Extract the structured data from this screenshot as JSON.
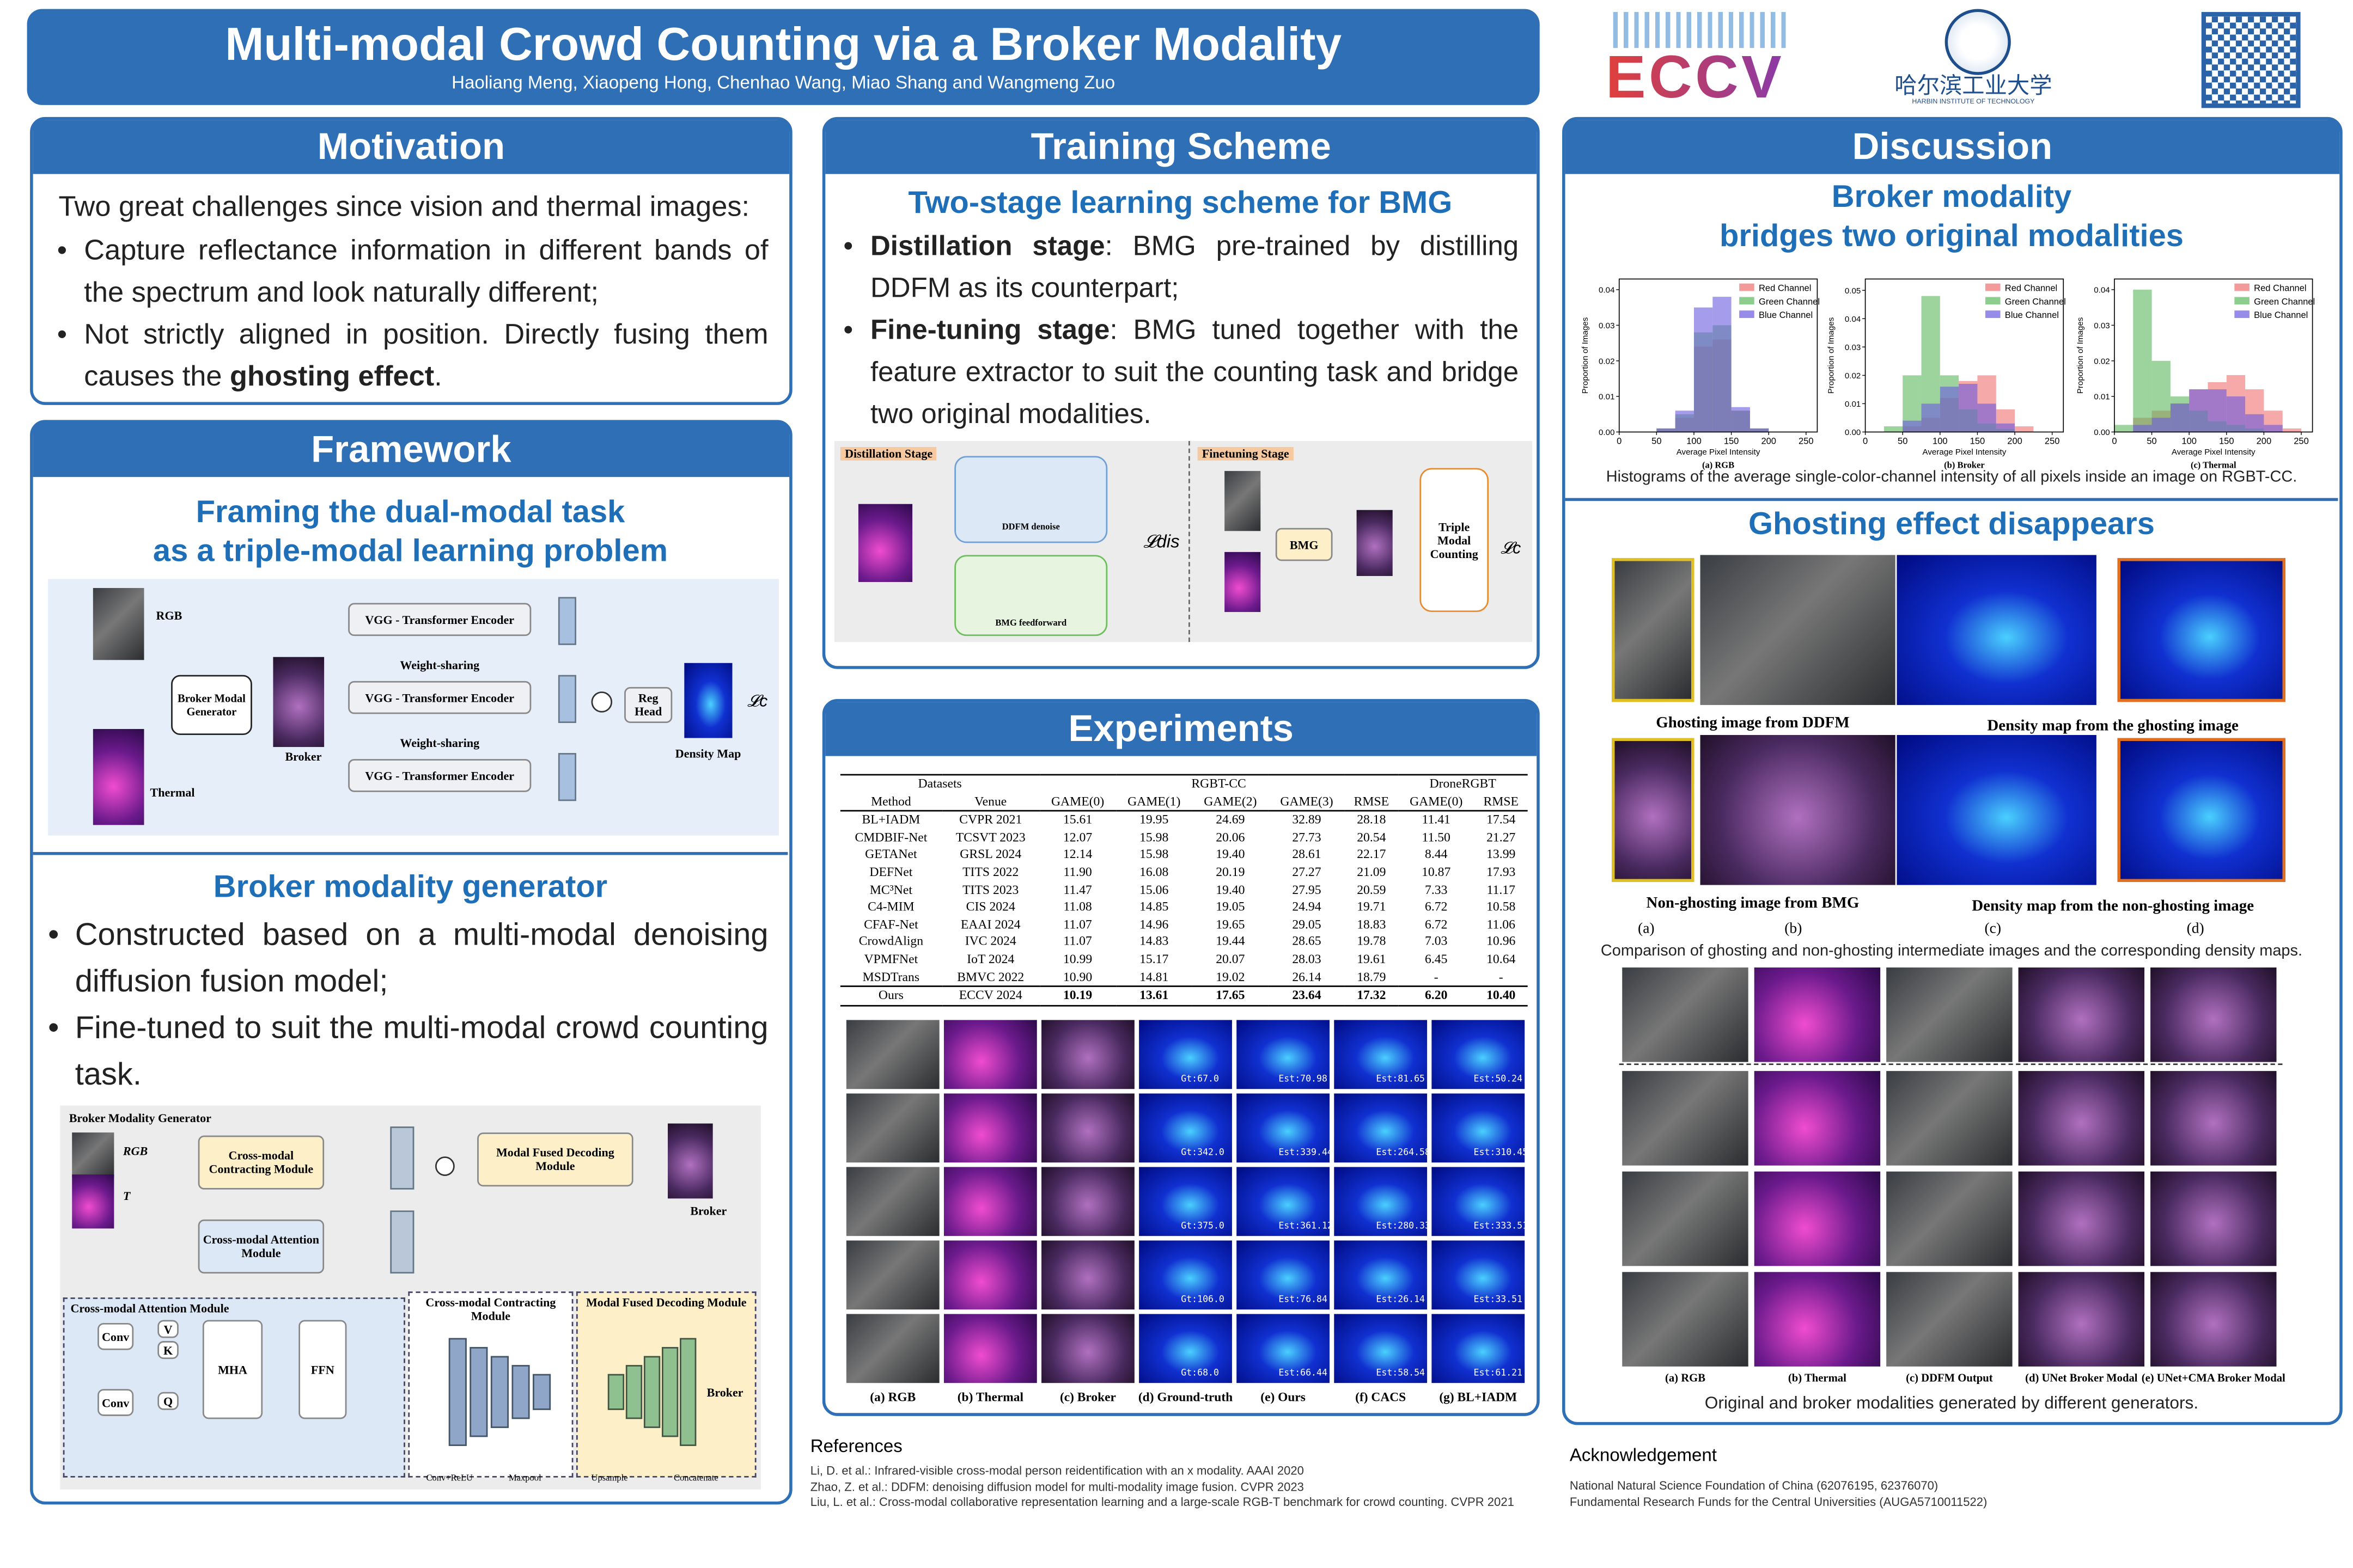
{
  "header": {
    "title": "Multi-modal Crowd Counting via a Broker Modality",
    "authors": "Haoliang Meng, Xiaopeng Hong, Chenhao Wang, Miao Shang and Wangmeng Zuo",
    "eccv": "ECCV",
    "hit_cn": "哈尔滨工业大学",
    "hit_en": "HARBIN INSTITUTE OF TECHNOLOGY"
  },
  "motivation": {
    "heading": "Motivation",
    "intro": "Two great challenges since vision and thermal images:",
    "bullets": [
      [
        "Capture reflectance information in different bands of the spectrum and look naturally different;"
      ],
      [
        "Not strictly aligned in position. Directly fusing them causes the ",
        {
          "bold": "ghosting effect"
        },
        "."
      ]
    ]
  },
  "framework": {
    "heading": "Framework",
    "subtitle": [
      "Framing the dual-modal task",
      "as a triple-modal learning problem"
    ],
    "diagram": {
      "rgb": "RGB",
      "thermal": "Thermal",
      "generator": "Broker Modal Generator",
      "broker": "Broker",
      "encoders": [
        "VGG - Transformer Encoder",
        "VGG - Transformer Encoder",
        "VGG - Transformer Encoder"
      ],
      "sharing": [
        "Weight-sharing",
        "Weight-sharing"
      ],
      "head": "Reg Head",
      "density": "Density Map",
      "loss": "𝓛c"
    },
    "bmg_heading": "Broker modality generator",
    "bullets": [
      [
        "Constructed based on a multi-modal denoising diffusion fusion model;"
      ],
      [
        "Fine-tuned to suit the multi-modal crowd counting task."
      ]
    ],
    "bmg_diagram": {
      "title": "Broker Modality Generator",
      "rgb": "RGB",
      "t": "T",
      "contract": "Cross-modal Contracting Module",
      "attention": "Cross-modal Attention Module",
      "decode": "Modal Fused Decoding Module",
      "broker": "Broker",
      "att_title": "Cross-modal Attention Module",
      "conv": [
        "Conv",
        "Conv"
      ],
      "v": "V",
      "k": "K",
      "q": "Q",
      "mha": "MHA",
      "ffn": "FFN",
      "contract_title": "Cross-modal Contracting Module",
      "decode_title": "Modal Fused Decoding Module",
      "broker2": "Broker",
      "legend": [
        "Conv+ReLU",
        "Maxpool",
        "Upsample",
        "Concatenate"
      ]
    }
  },
  "training": {
    "heading": "Training Scheme",
    "subtitle": "Two-stage learning scheme for BMG",
    "bullets": [
      [
        {
          "bold": "Distillation stage"
        },
        ": BMG pre-trained by distilling DDFM as its counterpart;"
      ],
      [
        {
          "bold": "Fine-tuning stage"
        },
        ": BMG tuned together with the feature extractor to suit the counting task and bridge two original modalities."
      ]
    ],
    "diagram": {
      "stage1": "Distillation Stage",
      "denoise": "DDFM denoise",
      "feed": "BMG feedforward",
      "loss1": "𝓛dis",
      "stage2": "Finetuning Stage",
      "bmg": "BMG",
      "counting": "Triple Modal Counting",
      "loss2": "𝓛c"
    }
  },
  "experiments": {
    "heading": "Experiments",
    "table": {
      "group": [
        "Datasets",
        "RGBT-CC",
        "DroneRGBT"
      ],
      "columns": [
        "Method",
        "Venue",
        "GAME(0)",
        "GAME(1)",
        "GAME(2)",
        "GAME(3)",
        "RMSE",
        "GAME(0)",
        "RMSE"
      ],
      "rows": [
        [
          "BL+IADM",
          "CVPR 2021",
          "15.61",
          "19.95",
          "24.69",
          "32.89",
          "28.18",
          "11.41",
          "17.54"
        ],
        [
          "CMDBIF-Net",
          "TCSVT 2023",
          "12.07",
          "15.98",
          "20.06",
          "27.73",
          "20.54",
          "11.50",
          "21.27"
        ],
        [
          "GETANet",
          "GRSL 2024",
          "12.14",
          "15.98",
          "19.40",
          "28.61",
          "22.17",
          "8.44",
          "13.99"
        ],
        [
          "DEFNet",
          "TITS 2022",
          "11.90",
          "16.08",
          "20.19",
          "27.27",
          "21.09",
          "10.87",
          "17.93"
        ],
        [
          "MC³Net",
          "TITS 2023",
          "11.47",
          "15.06",
          "19.40",
          "27.95",
          "20.59",
          "7.33",
          "11.17"
        ],
        [
          "C4-MIM",
          "CIS 2024",
          "11.08",
          "14.85",
          "19.05",
          "24.94",
          "19.71",
          "6.72",
          "10.58"
        ],
        [
          "CFAF-Net",
          "EAAI 2024",
          "11.07",
          "14.96",
          "19.65",
          "29.05",
          "18.83",
          "6.72",
          "11.06"
        ],
        [
          "CrowdAlign",
          "IVC 2024",
          "11.07",
          "14.83",
          "19.44",
          "28.65",
          "19.78",
          "7.03",
          "10.96"
        ],
        [
          "VPMFNet",
          "IoT 2024",
          "10.99",
          "15.17",
          "20.07",
          "28.03",
          "19.61",
          "6.45",
          "10.64"
        ],
        [
          "MSDTrans",
          "BMVC 2022",
          "10.90",
          "14.81",
          "19.02",
          "26.14",
          "18.79",
          "-",
          "-"
        ]
      ],
      "ours": [
        "Ours",
        "ECCV 2024",
        "10.19",
        "13.61",
        "17.65",
        "23.64",
        "17.32",
        "6.20",
        "10.40"
      ]
    },
    "counts": [
      [
        "Gt:67.0",
        "Est:70.98",
        "Est:81.65",
        "Est:50.24"
      ],
      [
        "Gt:342.0",
        "Est:339.44",
        "Est:264.58",
        "Est:310.45"
      ],
      [
        "Gt:375.0",
        "Est:361.12",
        "Est:280.33",
        "Est:333.51"
      ],
      [
        "Gt:106.0",
        "Est:76.84",
        "Est:26.14",
        "Est:33.51"
      ],
      [
        "Gt:68.0",
        "Est:66.44",
        "Est:58.54",
        "Est:61.21"
      ]
    ],
    "captions": [
      "(a) RGB",
      "(b) Thermal",
      "(c) Broker",
      "(d) Ground-truth",
      "(e) Ours",
      "(f) CACS",
      "(g) BL+IADM"
    ]
  },
  "discussion": {
    "heading": "Discussion",
    "subtitle": [
      "Broker modality",
      "bridges two original modalities"
    ],
    "hist_caption": "Histograms of the average single-color-channel intensity of all pixels inside an image on RGBT-CC.",
    "ghost_heading": "Ghosting effect disappears",
    "ghost_labels": [
      "Ghosting image from DDFM",
      "Density map from the ghosting image",
      "Non-ghosting image from BMG",
      "Density map from the non-ghosting image"
    ],
    "ghost_letters": [
      "(a)",
      "(b)",
      "(c)",
      "(d)"
    ],
    "ghost_caption": "Comparison of ghosting and non-ghosting intermediate images and the corresponding density maps.",
    "grid_captions": [
      "(a) RGB",
      "(b) Thermal",
      "(c) DDFM Output",
      "(d) UNet Broker Modal",
      "(e) UNet+CMA Broker Modal"
    ],
    "grid_caption": "Original and broker modalities generated by different generators."
  },
  "chart_data": [
    {
      "type": "histogram",
      "title": "(a) RGB",
      "xlabel": "Average Pixel Intensity",
      "ylabel": "Proportion of Images",
      "bins": [
        0,
        25,
        50,
        75,
        100,
        125,
        150,
        175,
        200,
        225,
        250
      ],
      "series": [
        {
          "name": "Red Channel",
          "color": "#ef6f6f",
          "values": [
            0,
            0,
            0.001,
            0.004,
            0.024,
            0.026,
            0.006,
            0.001,
            0,
            0
          ]
        },
        {
          "name": "Green Channel",
          "color": "#5cb85c",
          "values": [
            0,
            0,
            0.001,
            0.005,
            0.028,
            0.03,
            0.006,
            0.001,
            0,
            0
          ]
        },
        {
          "name": "Blue Channel",
          "color": "#6a5ae0",
          "values": [
            0,
            0,
            0.001,
            0.006,
            0.035,
            0.038,
            0.007,
            0.001,
            0,
            0
          ]
        }
      ],
      "xlim": [
        0,
        265
      ],
      "xticks": [
        0,
        50,
        100,
        150,
        200,
        250
      ],
      "ylim": [
        0,
        0.043
      ],
      "yticks": [
        {
          "value": 0,
          "label": "0.00"
        },
        {
          "value": 0.01,
          "label": "0.01"
        },
        {
          "value": 0.02,
          "label": "0.02"
        },
        {
          "value": 0.03,
          "label": "0.03"
        },
        {
          "value": 0.04,
          "label": "0.04"
        }
      ],
      "legend": "upper right"
    },
    {
      "type": "histogram",
      "title": "(b) Broker",
      "xlabel": "Average Pixel Intensity",
      "ylabel": "Proportion of Images",
      "bins": [
        0,
        25,
        50,
        75,
        100,
        125,
        150,
        175,
        200,
        225,
        250
      ],
      "series": [
        {
          "name": "Red Channel",
          "color": "#ef6f6f",
          "values": [
            0,
            0,
            0.002,
            0.005,
            0.012,
            0.018,
            0.02,
            0.008,
            0.002,
            0
          ]
        },
        {
          "name": "Green Channel",
          "color": "#5cb85c",
          "values": [
            0,
            0.002,
            0.02,
            0.048,
            0.02,
            0.008,
            0.003,
            0.001,
            0,
            0
          ]
        },
        {
          "name": "Blue Channel",
          "color": "#6a5ae0",
          "values": [
            0,
            0,
            0.004,
            0.01,
            0.016,
            0.017,
            0.01,
            0.003,
            0,
            0
          ]
        }
      ],
      "xlim": [
        0,
        265
      ],
      "xticks": [
        0,
        50,
        100,
        150,
        200,
        250
      ],
      "ylim": [
        0,
        0.054
      ],
      "yticks": [
        {
          "value": 0,
          "label": "0.00"
        },
        {
          "value": 0.01,
          "label": "0.01"
        },
        {
          "value": 0.02,
          "label": "0.02"
        },
        {
          "value": 0.03,
          "label": "0.03"
        },
        {
          "value": 0.04,
          "label": "0.04"
        },
        {
          "value": 0.05,
          "label": "0.05"
        }
      ],
      "legend": "upper right"
    },
    {
      "type": "histogram",
      "title": "(c) Thermal",
      "xlabel": "Average Pixel Intensity",
      "ylabel": "Proportion of Images",
      "bins": [
        0,
        25,
        50,
        75,
        100,
        125,
        150,
        175,
        200,
        225,
        250
      ],
      "series": [
        {
          "name": "Red Channel",
          "color": "#ef6f6f",
          "values": [
            0,
            0.004,
            0.006,
            0.008,
            0.012,
            0.014,
            0.016,
            0.012,
            0.006,
            0.001
          ]
        },
        {
          "name": "Green Channel",
          "color": "#5cb85c",
          "values": [
            0.002,
            0.04,
            0.02,
            0.01,
            0.006,
            0.003,
            0.002,
            0.001,
            0,
            0
          ]
        },
        {
          "name": "Blue Channel",
          "color": "#6a5ae0",
          "values": [
            0,
            0.002,
            0.004,
            0.008,
            0.012,
            0.012,
            0.01,
            0.005,
            0.002,
            0
          ]
        }
      ],
      "xlim": [
        0,
        265
      ],
      "xticks": [
        0,
        50,
        100,
        150,
        200,
        250
      ],
      "ylim": [
        0,
        0.043
      ],
      "yticks": [
        {
          "value": 0,
          "label": "0.00"
        },
        {
          "value": 0.01,
          "label": "0.01"
        },
        {
          "value": 0.02,
          "label": "0.02"
        },
        {
          "value": 0.03,
          "label": "0.03"
        },
        {
          "value": 0.04,
          "label": "0.04"
        }
      ],
      "legend": "upper right"
    }
  ],
  "references": {
    "heading": "References",
    "items": [
      "Li, D. et al.: Infrared-visible cross-modal person reidentification with an x modality. AAAI 2020",
      "Zhao, Z. et al.: DDFM: denoising diffusion model for multi-modality image fusion. CVPR 2023",
      "Liu, L. et al.: Cross-modal collaborative representation learning and a large-scale RGB-T benchmark for crowd counting. CVPR 2021"
    ]
  },
  "acknowledgement": {
    "heading": "Acknowledgement",
    "items": [
      "National Natural Science Foundation of China (62076195, 62376070)",
      "Fundamental Research Funds for the Central Universities (AUGA5710011522)"
    ]
  }
}
